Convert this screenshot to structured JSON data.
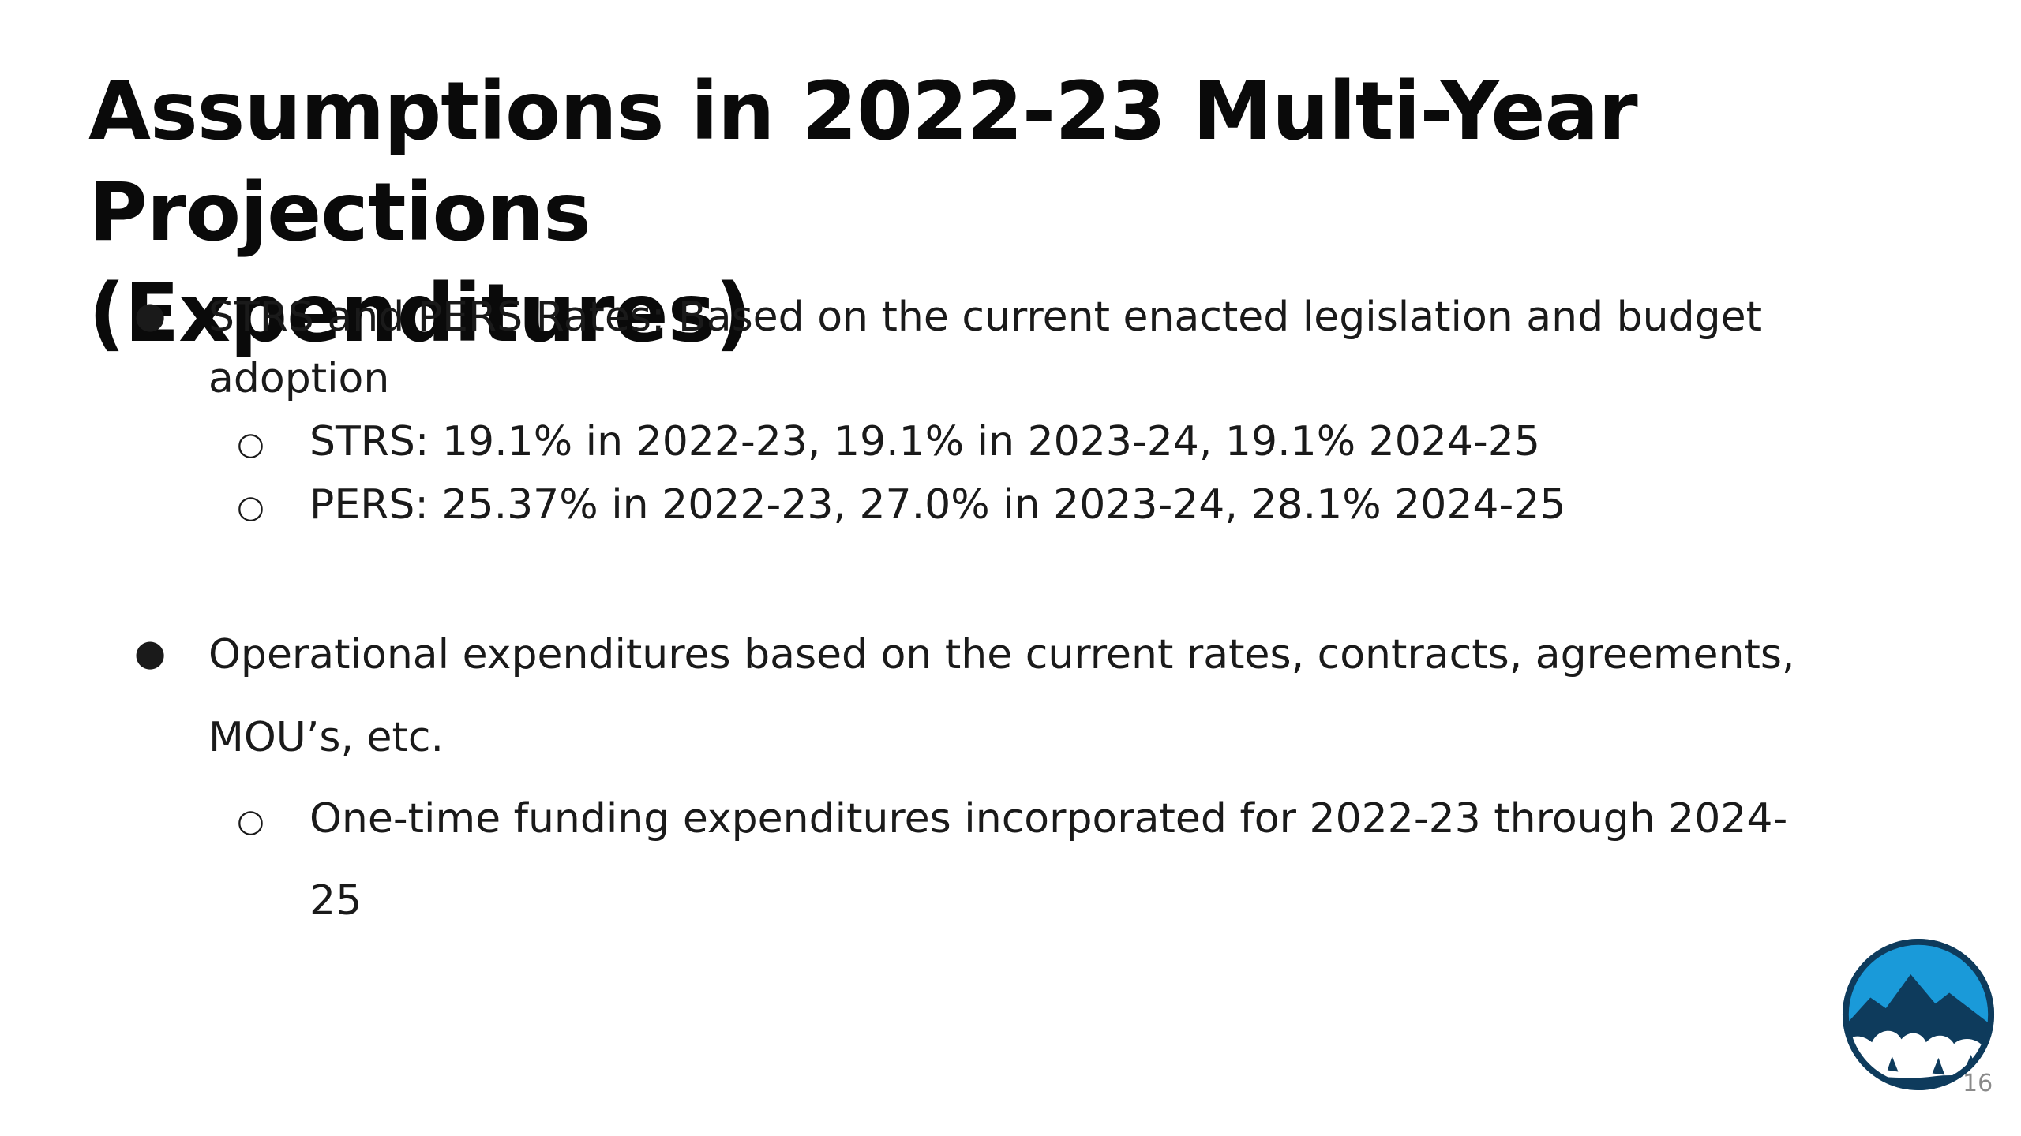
{
  "slide": {
    "title_line1": "Assumptions in 2022-23 Multi-Year Projections",
    "title_line2": "(Expenditures)",
    "bullets": [
      {
        "line1": "STRS and PERS Rates: Based on the current enacted legislation and budget",
        "line2": "adoption",
        "sub": [
          "STRS: 19.1% in 2022-23, 19.1% in 2023-24, 19.1% 2024-25",
          "PERS: 25.37% in 2022-23, 27.0% in 2023-24, 28.1% 2024-25"
        ]
      },
      {
        "line1": "Operational expenditures based on the current rates, contracts, agreements,",
        "line2": "MOU’s, etc.",
        "sub": [
          {
            "line1": "One-time funding expenditures incorporated for 2022-23 through 2024-",
            "line2": "25"
          }
        ]
      }
    ],
    "page_number": "16"
  },
  "colors": {
    "logo_blue": "#1a9ad9",
    "logo_navy": "#0e3b5c",
    "text": "#1a1a1a"
  },
  "icons": {
    "logo": "mountain-logo-icon"
  }
}
